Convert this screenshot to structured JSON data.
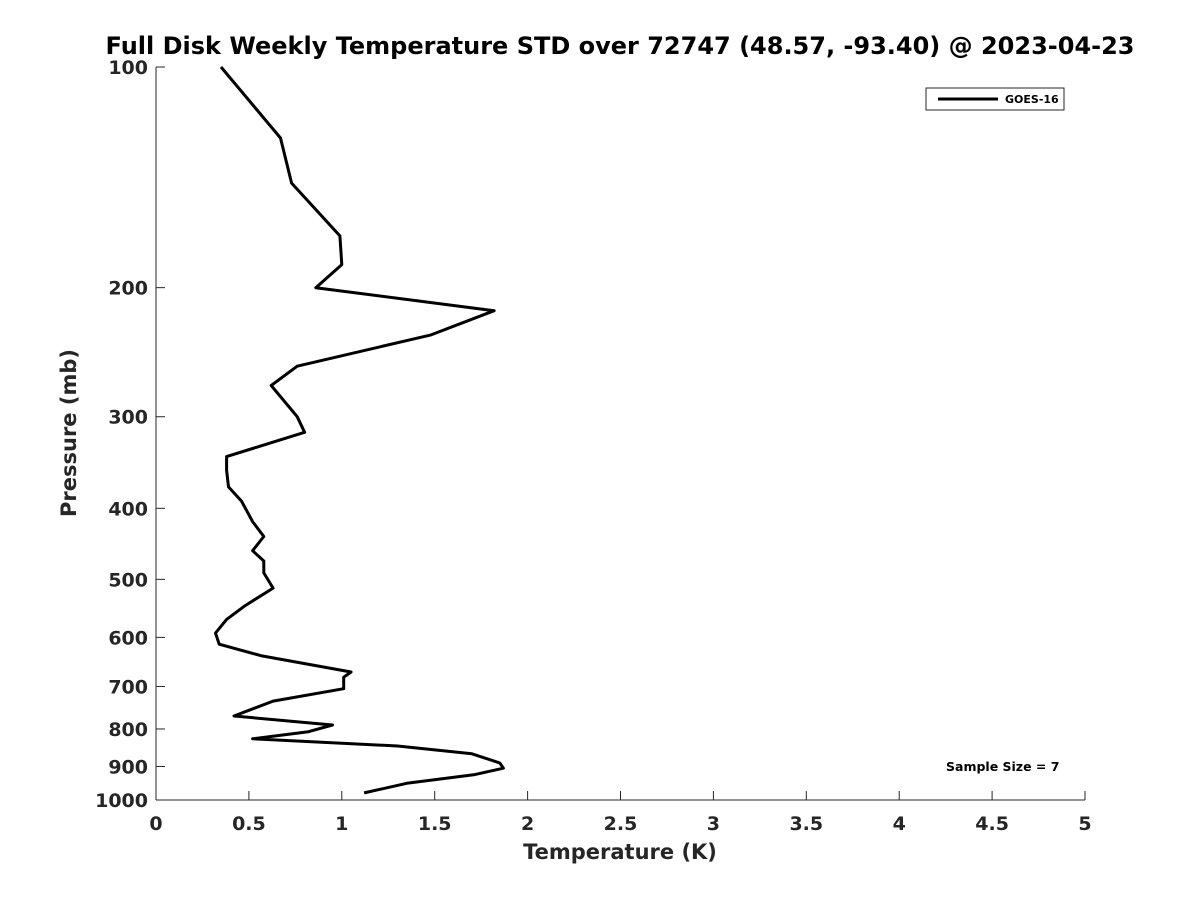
{
  "chart_data": {
    "type": "line",
    "title": "Full Disk Weekly Temperature STD over 72747 (48.57, -93.40) @ 2023-04-23",
    "xlabel": "Temperature (K)",
    "ylabel": "Pressure (mb)",
    "xlim": [
      0,
      5
    ],
    "ylim": [
      100,
      1000
    ],
    "y_scale": "log",
    "y_reversed": true,
    "x_ticks": [
      0,
      0.5,
      1,
      1.5,
      2,
      2.5,
      3,
      3.5,
      4,
      4.5,
      5
    ],
    "x_tick_labels": [
      "0",
      "0.5",
      "1",
      "1.5",
      "2",
      "2.5",
      "3",
      "3.5",
      "4",
      "4.5",
      "5"
    ],
    "y_ticks": [
      100,
      200,
      300,
      400,
      500,
      600,
      700,
      800,
      900,
      1000
    ],
    "y_tick_labels": [
      "100",
      "200",
      "300",
      "400",
      "500",
      "600",
      "700",
      "800",
      "900",
      "1000"
    ],
    "grid": false,
    "legend_position": "top-right",
    "series": [
      {
        "name": "GOES-16",
        "color": "#000000",
        "x": [
          0.35,
          0.67,
          0.73,
          0.99,
          1.0,
          0.86,
          1.82,
          1.48,
          0.76,
          0.62,
          0.76,
          0.8,
          0.38,
          0.38,
          0.39,
          0.46,
          0.52,
          0.58,
          0.52,
          0.58,
          0.58,
          0.63,
          0.48,
          0.38,
          0.32,
          0.34,
          0.57,
          1.05,
          1.01,
          1.01,
          0.63,
          0.42,
          0.95,
          0.82,
          0.52,
          1.3,
          1.7,
          1.85,
          1.87,
          1.71,
          1.35,
          1.12
        ],
        "y": [
          100,
          125,
          144,
          170,
          186,
          200,
          215,
          232,
          256,
          272,
          300,
          315,
          340,
          355,
          374,
          391,
          417,
          437,
          457,
          472,
          490,
          514,
          543,
          567,
          592,
          613,
          636,
          669,
          680,
          705,
          733,
          768,
          790,
          807,
          825,
          844,
          865,
          890,
          905,
          924,
          949,
          978
        ]
      }
    ]
  },
  "legend": {
    "label": "GOES-16"
  },
  "annotation": {
    "sample_size": "Sample Size = 7"
  }
}
